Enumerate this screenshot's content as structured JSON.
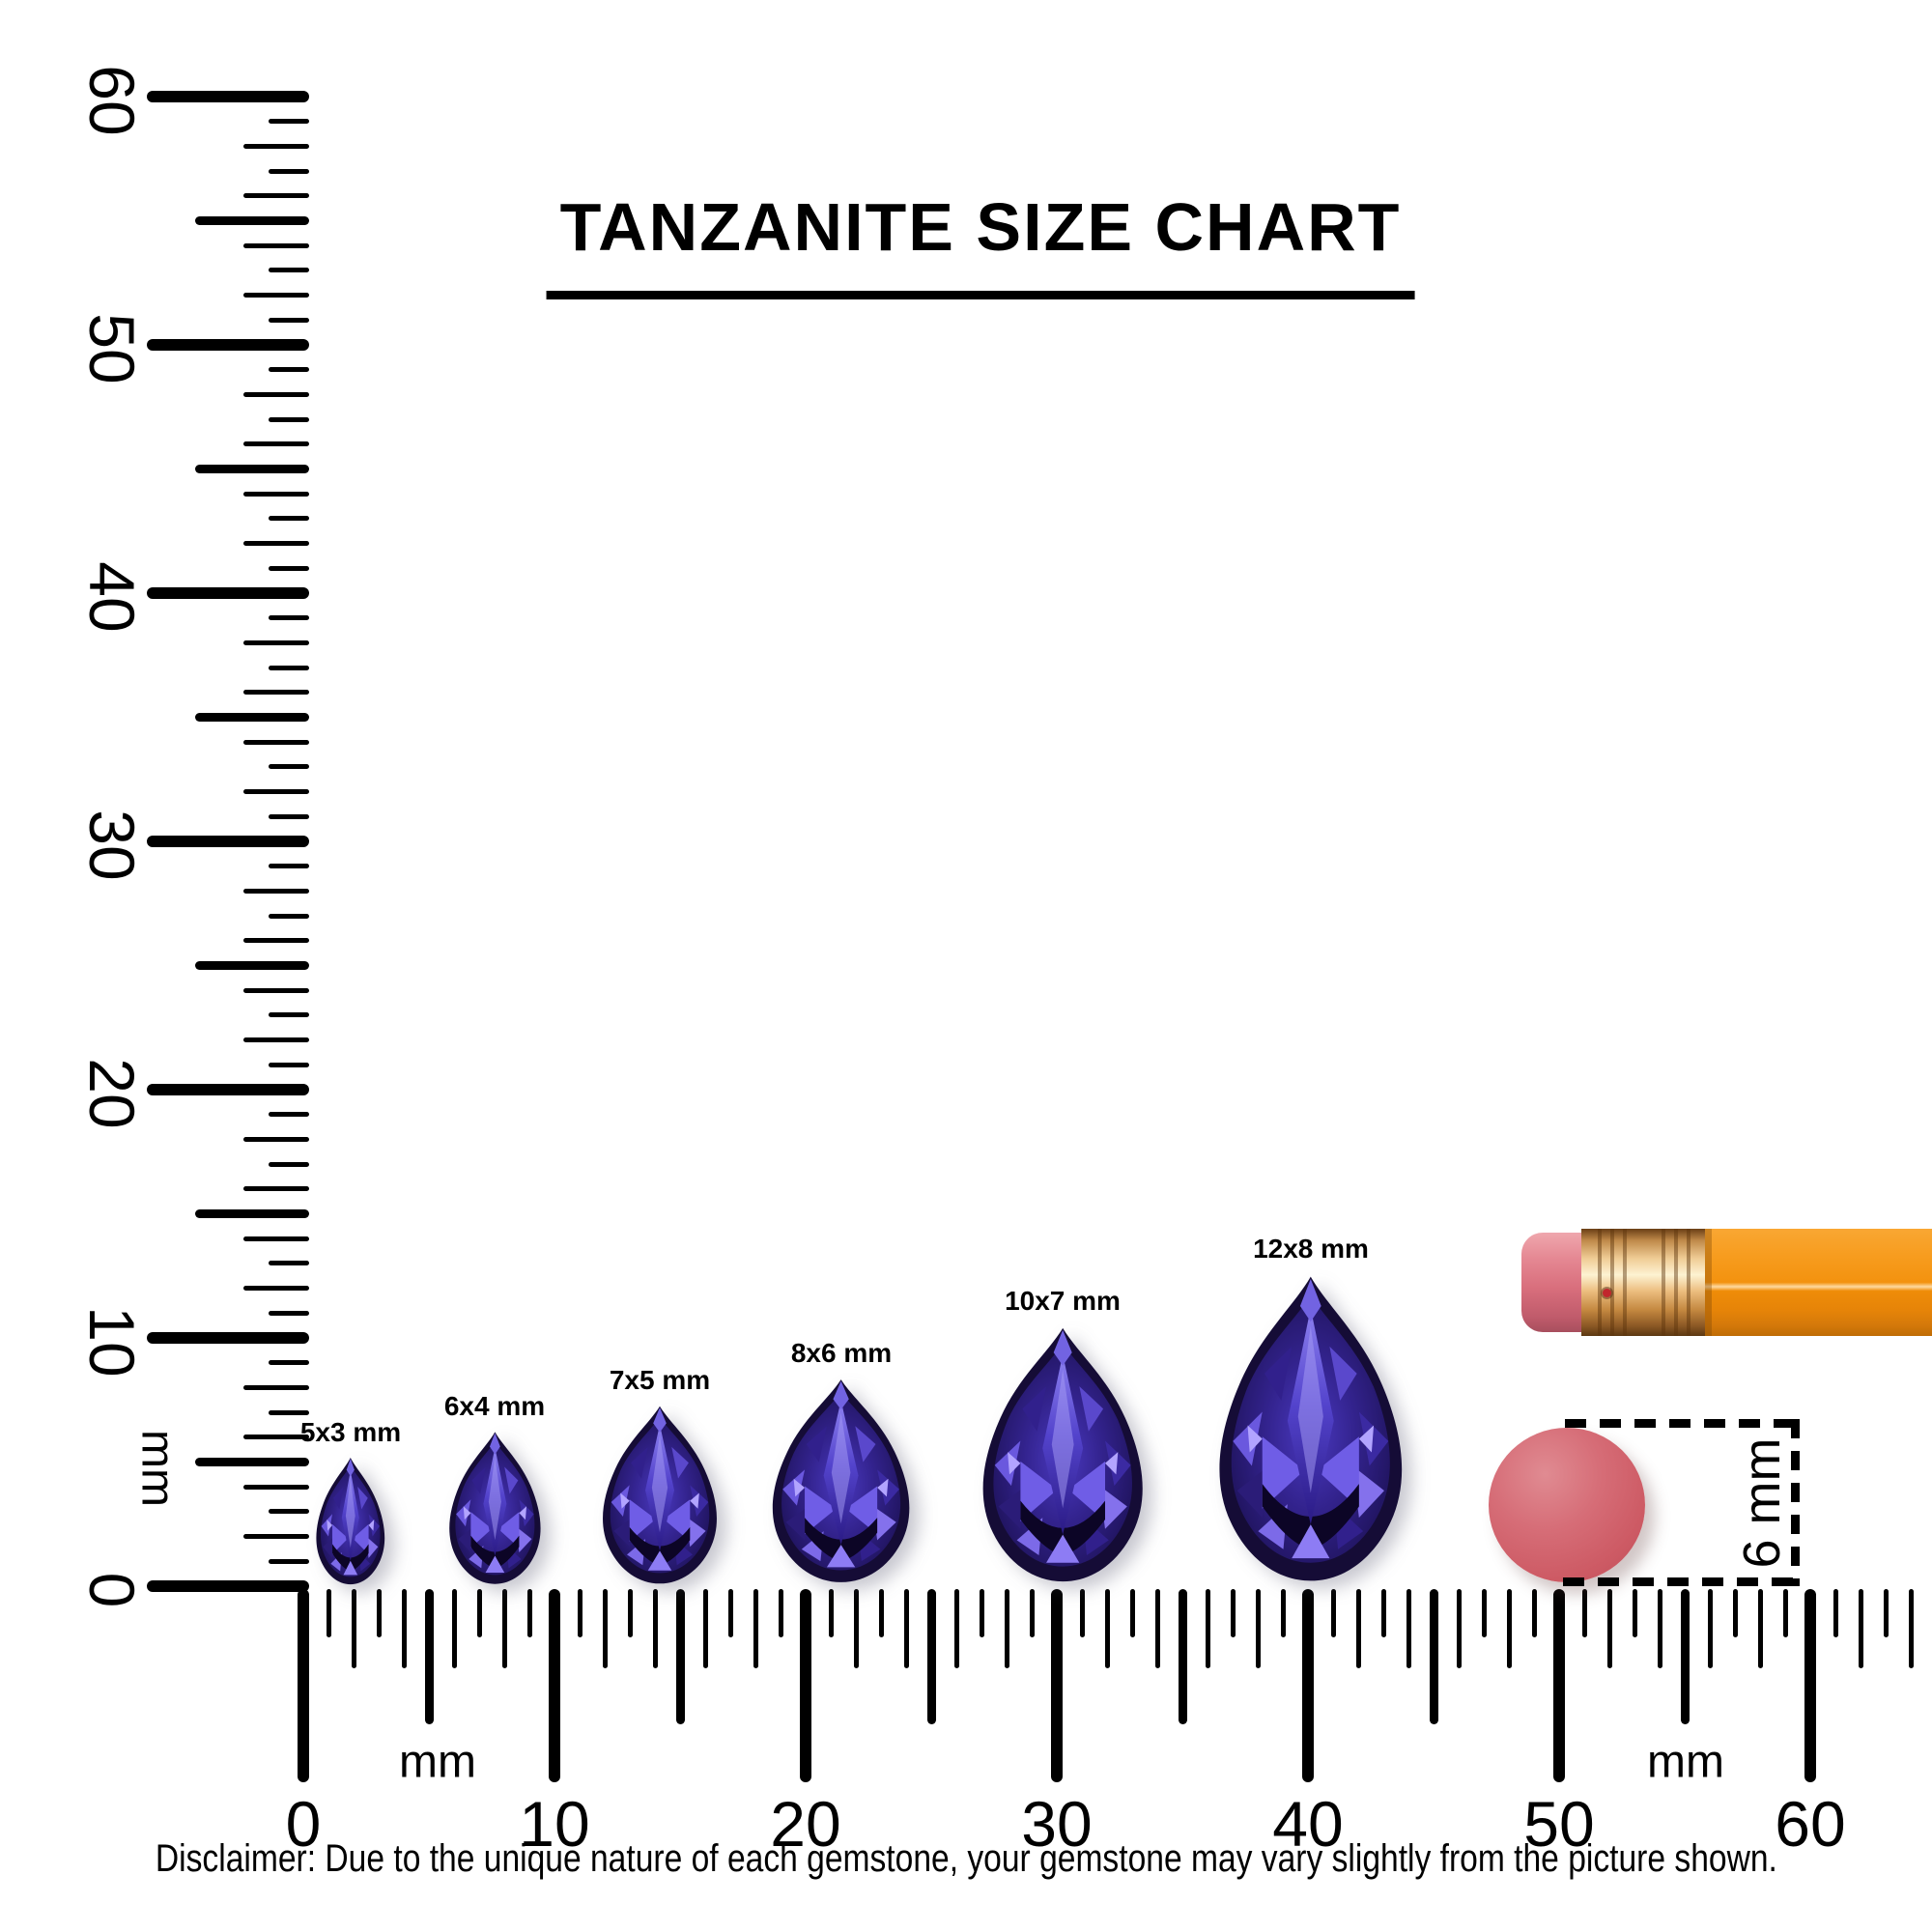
{
  "title": "TANZANITE SIZE CHART",
  "vertical_ruler": {
    "unit_label": "mm",
    "min_mm": 0,
    "max_mm": 60,
    "label_step_mm": 10,
    "labels": [
      "0",
      "10",
      "20",
      "30",
      "40",
      "50",
      "60"
    ]
  },
  "horizontal_ruler": {
    "unit_labels": [
      "mm",
      "mm"
    ],
    "min_mm": 0,
    "max_mm": 60,
    "extra_ticks_to_mm": 64,
    "label_step_mm": 10,
    "labels": [
      "0",
      "10",
      "20",
      "30",
      "40",
      "50",
      "60"
    ]
  },
  "gems": [
    {
      "label": "5x3 mm",
      "width_mm": 3,
      "height_mm": 5
    },
    {
      "label": "6x4 mm",
      "width_mm": 4,
      "height_mm": 6
    },
    {
      "label": "7x5 mm",
      "width_mm": 5,
      "height_mm": 7
    },
    {
      "label": "8x6 mm",
      "width_mm": 6,
      "height_mm": 8
    },
    {
      "label": "10x7 mm",
      "width_mm": 7,
      "height_mm": 10
    },
    {
      "label": "12x8 mm",
      "width_mm": 8,
      "height_mm": 12
    }
  ],
  "reference_objects": {
    "pencil": "pencil with pink eraser and gold ferrule",
    "eraser_disc_size_label": "6 mm"
  },
  "disclaimer": "Disclaimer: Due to the unique nature of each gemstone, your gemstone may vary slightly from the picture shown.",
  "colors": {
    "ink": "#000000",
    "gem_dark": "#150c36",
    "gem_mid": "#34248c",
    "gem_bright": "#5b4ad2",
    "gem_light": "#9d92f2",
    "eraser_disc": "#d4646d",
    "pencil_body": "#f79c1e",
    "pencil_eraser": "#d96f7d",
    "pencil_ferrule": "#ecbe80"
  }
}
